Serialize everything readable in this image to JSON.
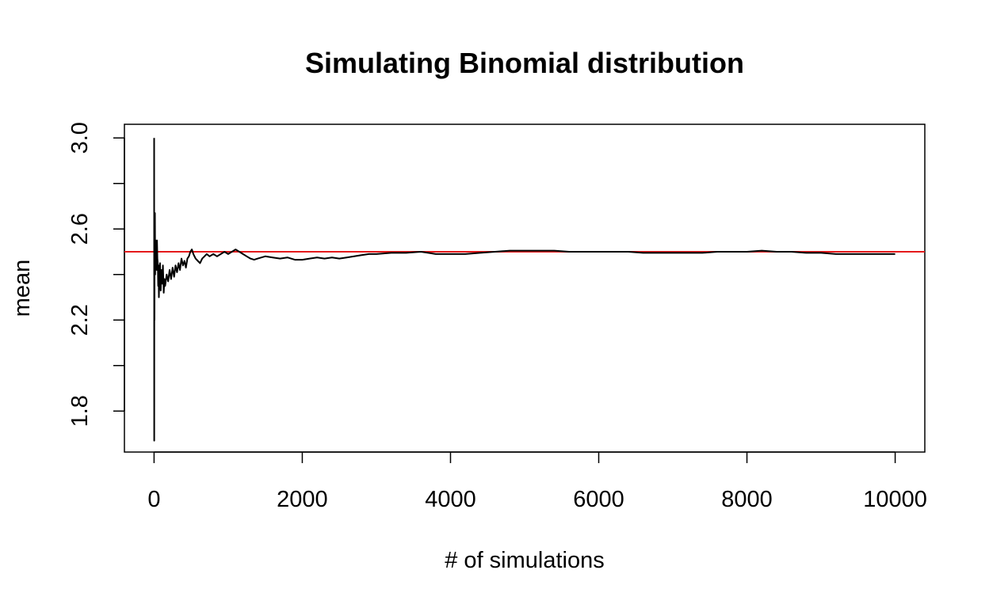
{
  "chart_data": {
    "type": "line",
    "title": "Simulating Binomial distribution",
    "xlabel": "# of simulations",
    "ylabel": "mean",
    "xlim": [
      -400,
      10400
    ],
    "ylim": [
      1.62,
      3.06
    ],
    "x_ticks": [
      0,
      2000,
      4000,
      6000,
      8000,
      10000
    ],
    "x_tick_labels": [
      "0",
      "2000",
      "4000",
      "6000",
      "8000",
      "10000"
    ],
    "y_ticks": [
      1.8,
      2.0,
      2.2,
      2.4,
      2.6,
      2.8,
      3.0
    ],
    "y_tick_labels": [
      "1.8",
      "",
      "2.2",
      "",
      "2.6",
      "",
      "3.0"
    ],
    "grid": false,
    "reference_line": {
      "y": 2.5,
      "color": "#e41a1c"
    },
    "series": [
      {
        "color": "#000000",
        "points": [
          [
            1,
            3.0
          ],
          [
            2,
            1.67
          ],
          [
            3,
            2.33
          ],
          [
            5,
            2.2
          ],
          [
            8,
            2.63
          ],
          [
            10,
            2.55
          ],
          [
            12,
            2.67
          ],
          [
            15,
            2.4
          ],
          [
            20,
            2.55
          ],
          [
            25,
            2.45
          ],
          [
            30,
            2.5
          ],
          [
            35,
            2.42
          ],
          [
            40,
            2.55
          ],
          [
            45,
            2.47
          ],
          [
            50,
            2.45
          ],
          [
            55,
            2.35
          ],
          [
            60,
            2.44
          ],
          [
            65,
            2.3
          ],
          [
            70,
            2.38
          ],
          [
            80,
            2.45
          ],
          [
            90,
            2.33
          ],
          [
            100,
            2.42
          ],
          [
            110,
            2.36
          ],
          [
            120,
            2.44
          ],
          [
            130,
            2.32
          ],
          [
            140,
            2.38
          ],
          [
            150,
            2.35
          ],
          [
            170,
            2.4
          ],
          [
            190,
            2.37
          ],
          [
            210,
            2.42
          ],
          [
            230,
            2.38
          ],
          [
            250,
            2.43
          ],
          [
            270,
            2.39
          ],
          [
            290,
            2.44
          ],
          [
            310,
            2.41
          ],
          [
            330,
            2.45
          ],
          [
            350,
            2.42
          ],
          [
            370,
            2.47
          ],
          [
            390,
            2.44
          ],
          [
            410,
            2.46
          ],
          [
            430,
            2.43
          ],
          [
            450,
            2.47
          ],
          [
            470,
            2.48
          ],
          [
            490,
            2.5
          ],
          [
            510,
            2.51
          ],
          [
            530,
            2.49
          ],
          [
            560,
            2.47
          ],
          [
            590,
            2.46
          ],
          [
            620,
            2.45
          ],
          [
            650,
            2.47
          ],
          [
            680,
            2.48
          ],
          [
            710,
            2.49
          ],
          [
            750,
            2.48
          ],
          [
            800,
            2.49
          ],
          [
            850,
            2.48
          ],
          [
            900,
            2.49
          ],
          [
            950,
            2.5
          ],
          [
            1000,
            2.49
          ],
          [
            1050,
            2.5
          ],
          [
            1100,
            2.51
          ],
          [
            1150,
            2.5
          ],
          [
            1200,
            2.49
          ],
          [
            1250,
            2.48
          ],
          [
            1300,
            2.47
          ],
          [
            1350,
            2.465
          ],
          [
            1400,
            2.47
          ],
          [
            1450,
            2.475
          ],
          [
            1500,
            2.48
          ],
          [
            1600,
            2.475
          ],
          [
            1700,
            2.47
          ],
          [
            1800,
            2.475
          ],
          [
            1900,
            2.465
          ],
          [
            2000,
            2.465
          ],
          [
            2100,
            2.47
          ],
          [
            2200,
            2.475
          ],
          [
            2300,
            2.47
          ],
          [
            2400,
            2.475
          ],
          [
            2500,
            2.47
          ],
          [
            2600,
            2.475
          ],
          [
            2700,
            2.48
          ],
          [
            2800,
            2.485
          ],
          [
            2900,
            2.49
          ],
          [
            3000,
            2.49
          ],
          [
            3200,
            2.495
          ],
          [
            3400,
            2.495
          ],
          [
            3600,
            2.5
          ],
          [
            3700,
            2.495
          ],
          [
            3800,
            2.49
          ],
          [
            4000,
            2.49
          ],
          [
            4200,
            2.49
          ],
          [
            4400,
            2.495
          ],
          [
            4600,
            2.5
          ],
          [
            4800,
            2.505
          ],
          [
            5000,
            2.505
          ],
          [
            5200,
            2.505
          ],
          [
            5400,
            2.505
          ],
          [
            5600,
            2.5
          ],
          [
            5800,
            2.5
          ],
          [
            6000,
            2.5
          ],
          [
            6200,
            2.5
          ],
          [
            6400,
            2.5
          ],
          [
            6600,
            2.495
          ],
          [
            6800,
            2.495
          ],
          [
            7000,
            2.495
          ],
          [
            7200,
            2.495
          ],
          [
            7400,
            2.495
          ],
          [
            7600,
            2.5
          ],
          [
            7800,
            2.5
          ],
          [
            8000,
            2.5
          ],
          [
            8200,
            2.505
          ],
          [
            8400,
            2.5
          ],
          [
            8600,
            2.5
          ],
          [
            8800,
            2.495
          ],
          [
            9000,
            2.495
          ],
          [
            9200,
            2.49
          ],
          [
            9400,
            2.49
          ],
          [
            9600,
            2.49
          ],
          [
            9800,
            2.49
          ],
          [
            10000,
            2.49
          ]
        ]
      }
    ]
  }
}
